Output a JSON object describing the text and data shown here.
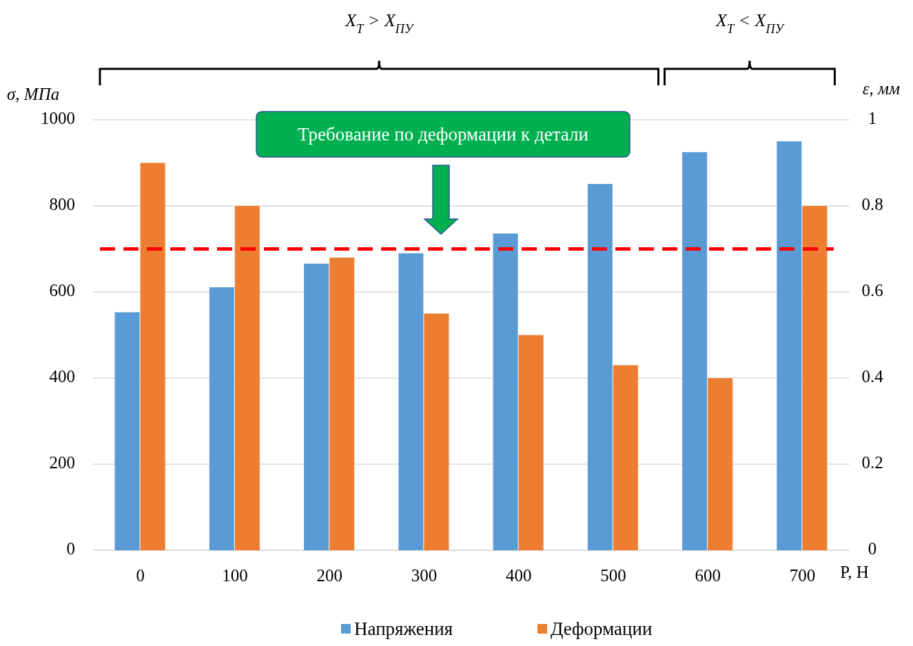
{
  "chart_data": {
    "type": "bar",
    "categories": [
      "0",
      "100",
      "200",
      "300",
      "400",
      "500",
      "600",
      "700"
    ],
    "series": [
      {
        "name": "Напряжения",
        "color": "#5b9bd5",
        "values": [
          553,
          611,
          666,
          690,
          736,
          851,
          925,
          950
        ]
      },
      {
        "name": "Деформации",
        "color": "#ed7d31",
        "axis": "y2",
        "values": [
          0.9,
          0.8,
          0.68,
          0.55,
          0.5,
          0.43,
          0.4,
          0.8
        ]
      }
    ],
    "ylim": [
      0,
      1000
    ],
    "yticks": [
      0,
      200,
      400,
      600,
      800,
      1000
    ],
    "y2lim": [
      0,
      1
    ],
    "y2ticks": [
      0,
      0.2,
      0.4,
      0.6,
      0.8,
      1
    ],
    "xlabel": "P, Н",
    "ylabel": "σ, МПа",
    "y2label": "ε, мм",
    "ref_lines": [
      {
        "axis": "y2",
        "value": 0.7,
        "color": "#ff0000",
        "line_style": "dashed"
      }
    ],
    "annotations": [
      "X$_{Т}$ > X$_{ПУ}$",
      "X$_{Т}$ < X$_{ПУ}$",
      "Требование по деформации к детали"
    ],
    "grid": "y",
    "legend": "bottom"
  }
}
